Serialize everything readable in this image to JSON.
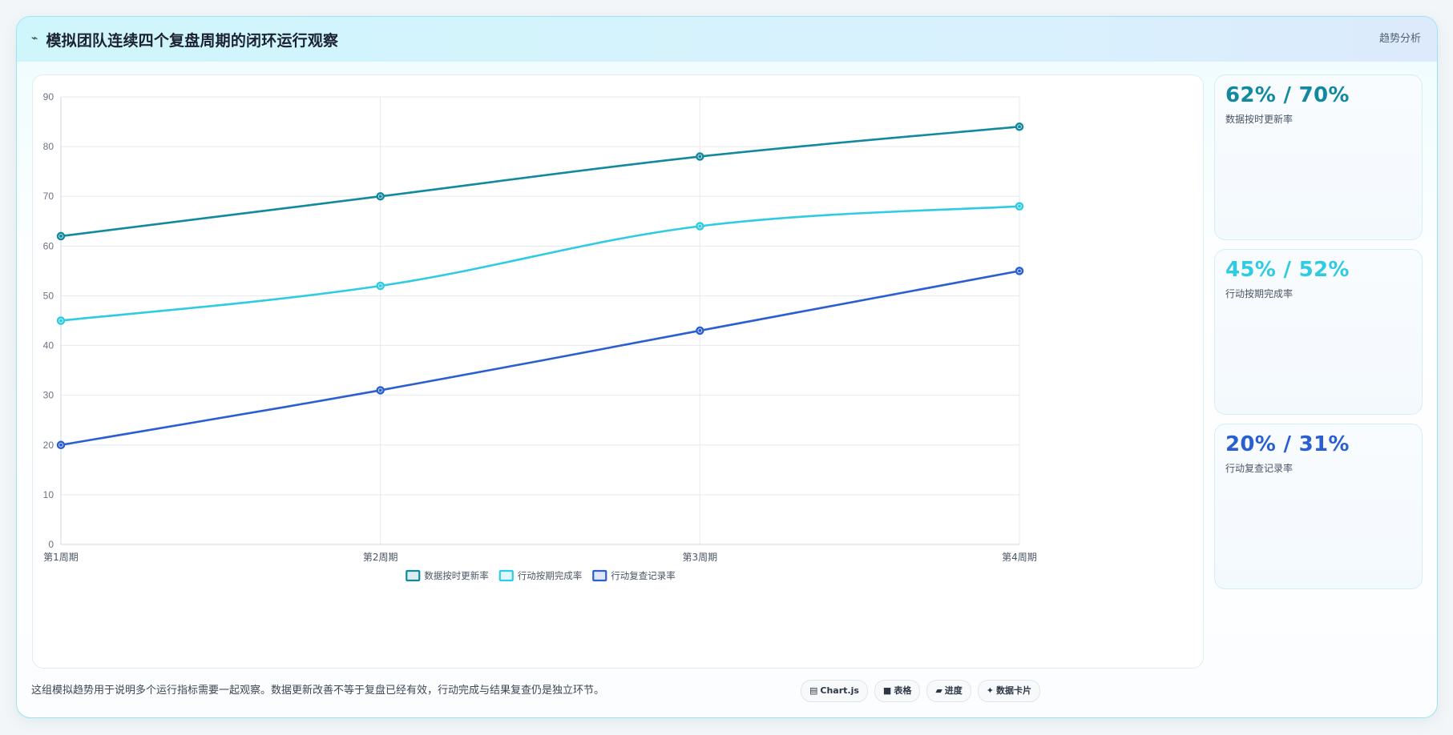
{
  "header": {
    "icon": "trend-line-icon",
    "title": "模拟团队连续四个复盘周期的闭环运行观察",
    "tag": "趋势分析"
  },
  "chart_data": {
    "type": "line",
    "categories": [
      "第1周期",
      "第2周期",
      "第3周期",
      "第4周期"
    ],
    "series": [
      {
        "name": "数据按时更新率",
        "values": [
          62,
          70,
          78,
          84
        ],
        "color": "#12899f"
      },
      {
        "name": "行动按期完成率",
        "values": [
          45,
          52,
          64,
          68
        ],
        "color": "#2ecbe2"
      },
      {
        "name": "行动复查记录率",
        "values": [
          20,
          31,
          43,
          55
        ],
        "color": "#2b5fd1"
      }
    ],
    "title": "",
    "xlabel": "",
    "ylabel": "",
    "ylim": [
      0,
      90
    ],
    "yticks": [
      0,
      10,
      20,
      30,
      40,
      50,
      60,
      70,
      80,
      90
    ],
    "grid": true,
    "legend": "bottom-center"
  },
  "stats": [
    {
      "value": "62% / 70%",
      "label": "数据按时更新率",
      "color": "#12899f"
    },
    {
      "value": "45% / 52%",
      "label": "行动按期完成率",
      "color": "#2ecbe2"
    },
    {
      "value": "20% / 31%",
      "label": "行动复查记录率",
      "color": "#2b5fd1"
    }
  ],
  "footnote": "这组模拟趋势用于说明多个运行指标需要一起观察。数据更新改善不等于复盘已经有效，行动完成与结果复查仍是独立环节。",
  "pills": [
    {
      "icon": "chart-icon",
      "glyph": "▤",
      "label": "Chart.js"
    },
    {
      "icon": "table-icon",
      "glyph": "■",
      "label": "表格"
    },
    {
      "icon": "progress-icon",
      "glyph": "▰",
      "label": "进度"
    },
    {
      "icon": "sparkle-icon",
      "glyph": "✦",
      "label": "数据卡片"
    }
  ]
}
